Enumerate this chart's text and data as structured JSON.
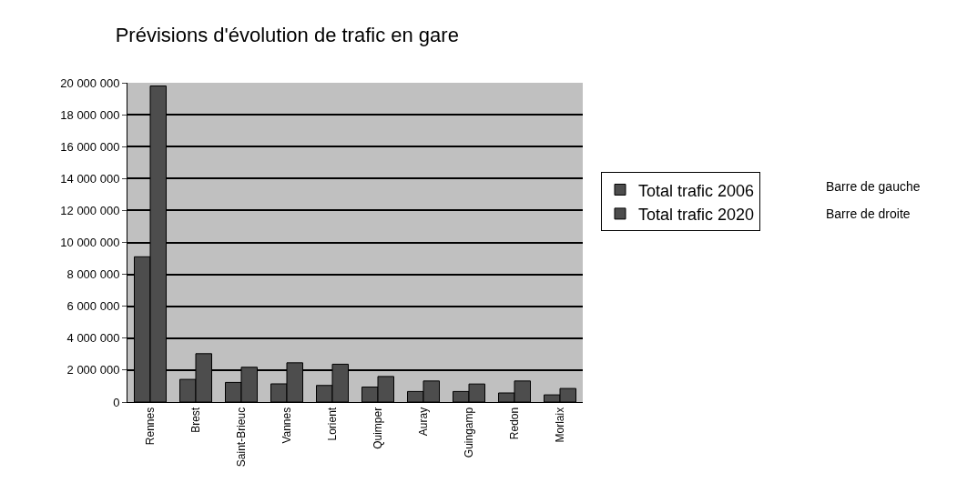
{
  "chart_data": {
    "type": "bar",
    "title": "Prévisions d'évolution de trafic en gare",
    "categories": [
      "Rennes",
      "Brest",
      "Saint-Brieuc",
      "Vannes",
      "Lorient",
      "Quimper",
      "Auray",
      "Guingamp",
      "Redon",
      "Morlaix"
    ],
    "series": [
      {
        "name": "Total trafic 2006",
        "color": "#4d4d4d",
        "values": [
          9100000,
          1420000,
          1230000,
          1140000,
          1040000,
          940000,
          660000,
          660000,
          570000,
          450000
        ]
      },
      {
        "name": "Total trafic 2020",
        "color": "#4d4d4d",
        "values": [
          19800000,
          3030000,
          2180000,
          2460000,
          2370000,
          1600000,
          1320000,
          1130000,
          1320000,
          850000
        ]
      }
    ],
    "ylim": [
      0,
      20000000
    ],
    "yticks": [
      {
        "value": 0,
        "label": "0"
      },
      {
        "value": 2000000,
        "label": "2 000 000"
      },
      {
        "value": 4000000,
        "label": "4 000 000"
      },
      {
        "value": 6000000,
        "label": "6 000 000"
      },
      {
        "value": 8000000,
        "label": "8 000 000"
      },
      {
        "value": 10000000,
        "label": "10 000 000"
      },
      {
        "value": 12000000,
        "label": "12 000 000"
      },
      {
        "value": 14000000,
        "label": "14 000 000"
      },
      {
        "value": 16000000,
        "label": "16 000 000"
      },
      {
        "value": 18000000,
        "label": "18 000 000"
      },
      {
        "value": 20000000,
        "label": "20 000 000"
      }
    ],
    "grid": "y",
    "legend": "right",
    "annotations": [
      "Barre de gauche",
      "Barre de droite"
    ]
  }
}
